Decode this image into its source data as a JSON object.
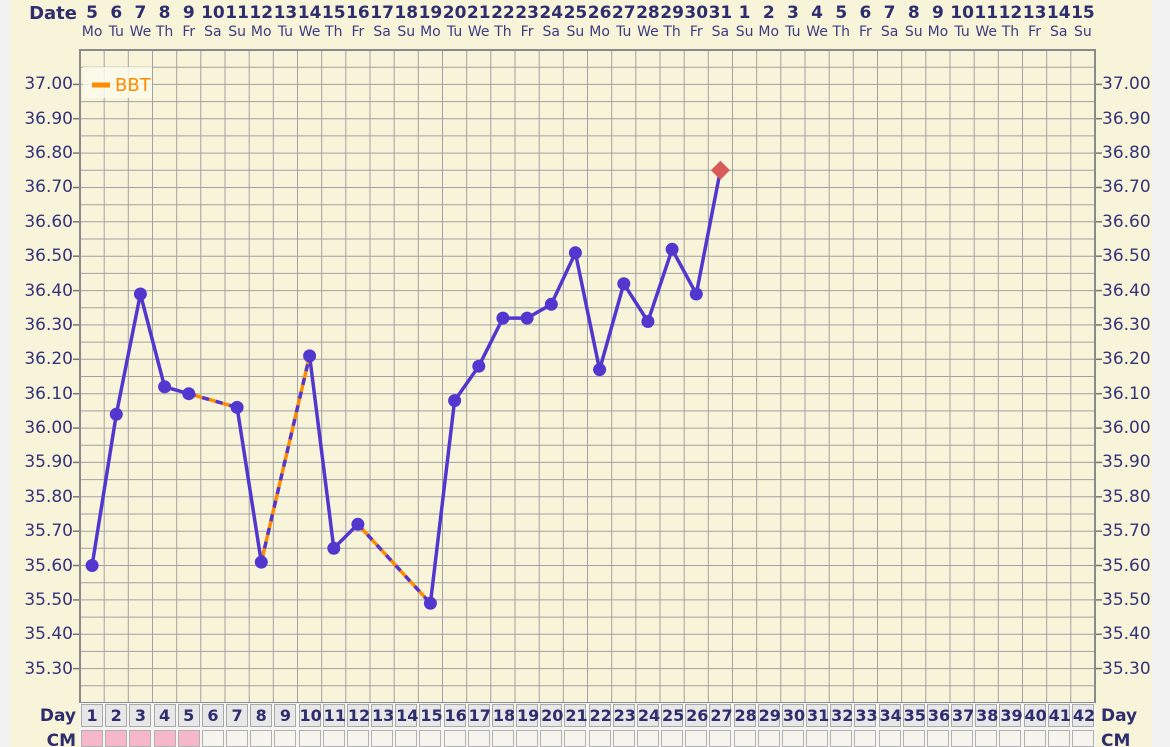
{
  "labels": {
    "date": "Date",
    "day": "Day",
    "cm": "CM"
  },
  "legend": {
    "bbt": "BBT"
  },
  "chart_data": {
    "type": "line",
    "title": "Basal body temperature (BBT) cycle chart",
    "series_name": "BBT",
    "x_axis": {
      "top_label": "Date",
      "bottom_label": "Day"
    },
    "dates": [
      5,
      6,
      7,
      8,
      9,
      10,
      11,
      12,
      13,
      14,
      15,
      16,
      17,
      18,
      19,
      20,
      21,
      22,
      23,
      24,
      25,
      26,
      27,
      28,
      29,
      30,
      31,
      1,
      2,
      3,
      4,
      5,
      6,
      7,
      8,
      9,
      10,
      11,
      12,
      13,
      14,
      15
    ],
    "weekdays": [
      "Mo",
      "Tu",
      "We",
      "Th",
      "Fr",
      "Sa",
      "Su",
      "Mo",
      "Tu",
      "We",
      "Th",
      "Fr",
      "Sa",
      "Su",
      "Mo",
      "Tu",
      "We",
      "Th",
      "Fr",
      "Sa",
      "Su",
      "Mo",
      "Tu",
      "We",
      "Th",
      "Fr",
      "Sa",
      "Su",
      "Mo",
      "Tu",
      "We",
      "Th",
      "Fr",
      "Sa",
      "Su",
      "Mo",
      "Tu",
      "We",
      "Th",
      "Fr",
      "Sa",
      "Su"
    ],
    "day_row": [
      1,
      2,
      3,
      4,
      5,
      6,
      7,
      8,
      9,
      10,
      11,
      12,
      13,
      14,
      15,
      16,
      17,
      18,
      19,
      20,
      21,
      22,
      23,
      24,
      25,
      26,
      27,
      28,
      29,
      30,
      31,
      32,
      33,
      34,
      35,
      36,
      37,
      38,
      39,
      40,
      41,
      42
    ],
    "bbt": [
      35.6,
      36.04,
      36.39,
      36.12,
      36.1,
      null,
      36.06,
      35.61,
      null,
      36.21,
      35.65,
      35.72,
      null,
      null,
      35.49,
      36.08,
      36.18,
      36.32,
      36.32,
      36.36,
      36.51,
      36.17,
      36.42,
      36.31,
      36.52,
      36.39,
      36.75,
      null,
      null,
      null,
      null,
      null,
      null,
      null,
      null,
      null,
      null,
      null,
      null,
      null,
      null,
      null
    ],
    "special_marker": {
      "day": 27,
      "value": 36.75,
      "shape": "diamond",
      "color": "#d85a5a"
    },
    "y_axis": {
      "ticks": [
        "37.00",
        "36.90",
        "36.80",
        "36.70",
        "36.60",
        "36.50",
        "36.40",
        "36.30",
        "36.20",
        "36.10",
        "36.00",
        "35.90",
        "35.80",
        "35.70",
        "35.60",
        "35.50",
        "35.40",
        "35.30"
      ],
      "min": 35.2,
      "max": 37.1,
      "major_step": 0.1,
      "minor_step": 0.05,
      "sides": "both"
    },
    "cm_row": {
      "label": "CM",
      "highlighted_days": [
        1,
        2,
        3,
        4,
        5
      ],
      "highlight_color": "#f5b7c9"
    },
    "grid": true,
    "legend_position": "top-left",
    "colors": {
      "line": "#5237cf",
      "marker": "#5237cf",
      "interpolated_dash": "#ff8c00",
      "special_marker": "#d85a5a",
      "legend_text": "#ff8c00",
      "grid_line": "#a2a2a2",
      "frame": "#8a8a8a",
      "background": "#f8f4d9",
      "axis_text": "#2e2d6e",
      "day_cell_bg": "#e7e7e7",
      "cm_cell_bg": "#f6f5ed"
    }
  }
}
